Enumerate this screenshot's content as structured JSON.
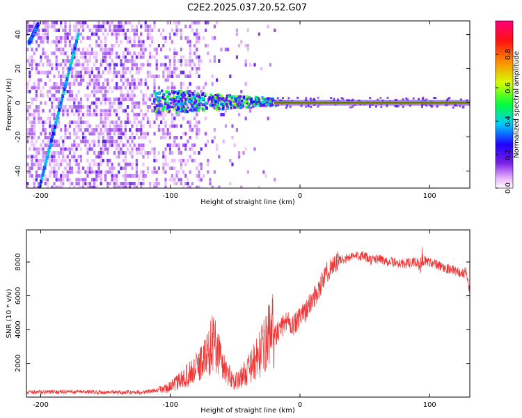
{
  "title": "C2E2.2025.037.20.52.G07",
  "chart_data": [
    {
      "type": "heatmap",
      "name": "spectrogram",
      "xlabel": "Height of straight line (km)",
      "ylabel": "Frequency (Hz)",
      "xlim": [
        -211,
        131
      ],
      "ylim": [
        -50,
        48
      ],
      "xticks": [
        -200,
        -100,
        0,
        100
      ],
      "yticks": [
        -40,
        -20,
        0,
        20,
        40
      ],
      "xtick_labels": [
        "-200",
        "-100",
        "0",
        "100"
      ],
      "ytick_labels": [
        "-40",
        "-20",
        "0",
        "20",
        "40"
      ],
      "colorbar": {
        "label": "Normalized spectral amplitude",
        "range": [
          0,
          1
        ],
        "ticks": [
          0.0,
          0.2,
          0.4,
          0.6,
          0.8
        ],
        "tick_labels": [
          "0.0",
          "0.2",
          "0.4",
          "0.6",
          "0.8"
        ]
      },
      "features": [
        {
          "name": "carrier-line",
          "freq_hz": 0,
          "x_from": -20,
          "x_to": 131,
          "amplitude": 0.9
        },
        {
          "name": "scattered-band",
          "freq_hz_center": 0,
          "freq_spread_hz": 6,
          "x_from": -115,
          "x_to": -20,
          "amplitude": 0.5
        },
        {
          "name": "diagonal-track-1",
          "points": [
            [
              -209,
              35
            ],
            [
              -202,
              46
            ]
          ],
          "amplitude": 0.3
        },
        {
          "name": "diagonal-track-2",
          "points": [
            [
              -201,
              -50
            ],
            [
              -171,
              40
            ]
          ],
          "amplitude": 0.35
        },
        {
          "name": "noise-region",
          "x_from": -211,
          "x_to": -78,
          "amplitude": 0.15
        }
      ]
    },
    {
      "type": "line",
      "name": "snr",
      "xlabel": "Height of straight line (km)",
      "ylabel": "SNR (10 * v/v)",
      "xlim": [
        -211,
        131
      ],
      "ylim": [
        0,
        9900
      ],
      "xticks": [
        -200,
        -100,
        0,
        100
      ],
      "yticks": [
        2000,
        4000,
        6000,
        8000
      ],
      "xtick_labels": [
        "-200",
        "-100",
        "0",
        "100"
      ],
      "ytick_labels": [
        "2000",
        "4000",
        "6000",
        "8000"
      ],
      "color": "#ee3333",
      "series": [
        {
          "name": "SNR",
          "x": [
            -211,
            -200,
            -180,
            -160,
            -140,
            -120,
            -110,
            -100,
            -90,
            -80,
            -72,
            -67,
            -64,
            -60,
            -55,
            -50,
            -45,
            -40,
            -35,
            -30,
            -25,
            -22,
            -20,
            -15,
            -10,
            -5,
            0,
            5,
            10,
            15,
            20,
            25,
            30,
            35,
            40,
            45,
            50,
            55,
            60,
            70,
            80,
            90,
            93,
            95,
            100,
            110,
            120,
            125,
            128,
            131
          ],
          "y": [
            300,
            300,
            320,
            300,
            280,
            300,
            400,
            600,
            1100,
            1700,
            2500,
            3300,
            3000,
            2000,
            1300,
            900,
            1200,
            1600,
            2100,
            2700,
            3400,
            4300,
            3600,
            4000,
            4600,
            4200,
            4700,
            5200,
            5800,
            6500,
            7300,
            7800,
            8100,
            8200,
            8300,
            8400,
            8300,
            8100,
            8200,
            8000,
            7900,
            8000,
            7600,
            8100,
            8000,
            7700,
            7500,
            7300,
            7400,
            6300
          ]
        }
      ]
    }
  ]
}
